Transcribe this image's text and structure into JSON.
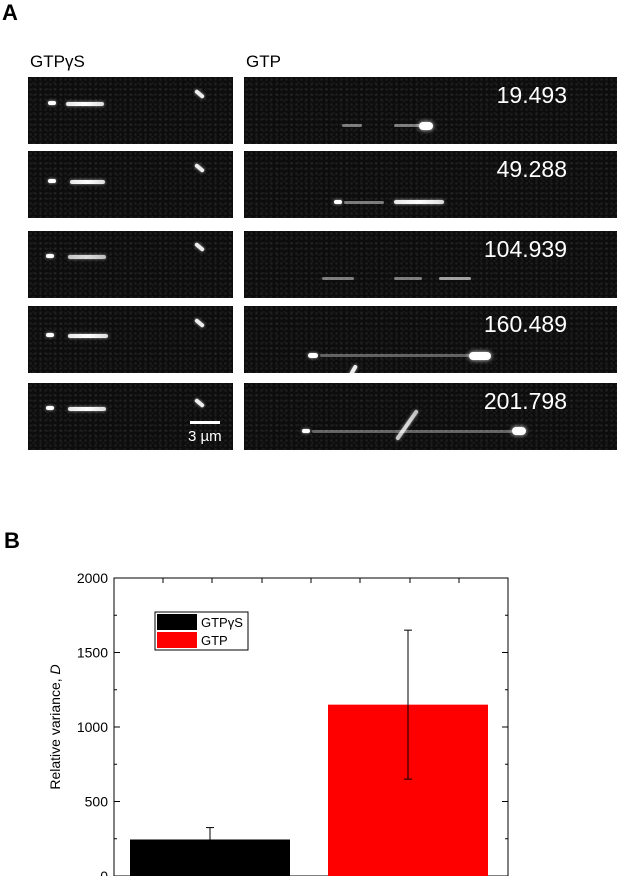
{
  "panel_a": {
    "letter": "A",
    "left_label": "GTPγS",
    "right_label": "GTP",
    "times": [
      "19.493",
      "49.288",
      "104.939",
      "160.489",
      "201.798"
    ],
    "scale_bar_label": "3 µm"
  },
  "panel_b": {
    "letter": "B"
  },
  "chart_data": {
    "type": "bar",
    "categories": [
      "GTPγS",
      "GTP"
    ],
    "values": [
      245,
      1150
    ],
    "errors": [
      80,
      500
    ],
    "colors": [
      "#000000",
      "#ff0000"
    ],
    "legend": [
      "GTPγS",
      "GTP"
    ],
    "legend_placement": "top-left",
    "ylabel": "Relative variance, D",
    "ylim": [
      0,
      2000
    ],
    "yticks": [
      "0",
      "500",
      "1000",
      "1500",
      "2000"
    ],
    "grid": false
  }
}
